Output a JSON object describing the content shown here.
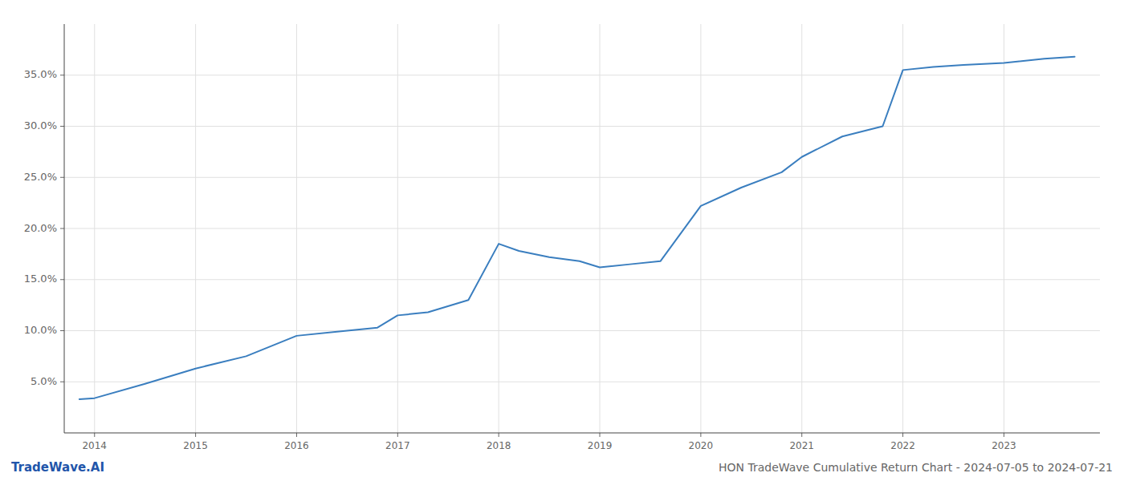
{
  "chart_data": {
    "type": "line",
    "title": "HON TradeWave Cumulative Return Chart - 2024-07-05 to 2024-07-21",
    "annotations": [
      "TradeWave.AI"
    ],
    "x": [
      2013.85,
      2014.0,
      2014.5,
      2015.0,
      2015.5,
      2016.0,
      2016.4,
      2016.8,
      2017.0,
      2017.3,
      2017.7,
      2018.0,
      2018.2,
      2018.5,
      2018.8,
      2019.0,
      2019.3,
      2019.6,
      2020.0,
      2020.4,
      2020.8,
      2021.0,
      2021.4,
      2021.8,
      2022.0,
      2022.3,
      2022.6,
      2023.0,
      2023.4,
      2023.7
    ],
    "values": [
      0.033,
      0.034,
      0.048,
      0.063,
      0.075,
      0.095,
      0.099,
      0.103,
      0.115,
      0.118,
      0.13,
      0.185,
      0.178,
      0.172,
      0.168,
      0.162,
      0.165,
      0.168,
      0.222,
      0.24,
      0.255,
      0.27,
      0.29,
      0.3,
      0.355,
      0.358,
      0.36,
      0.362,
      0.366,
      0.368
    ],
    "color": "#3a7ebf",
    "xlim": [
      2013.7,
      2023.95
    ],
    "ylim": [
      0.0,
      0.4
    ],
    "xticks": [
      2014,
      2015,
      2016,
      2017,
      2018,
      2019,
      2020,
      2021,
      2022,
      2023
    ],
    "yticks": [
      {
        "value": 0.05,
        "label": "5.0%"
      },
      {
        "value": 0.1,
        "label": "10.0%"
      },
      {
        "value": 0.15,
        "label": "15.0%"
      },
      {
        "value": 0.2,
        "label": "20.0%"
      },
      {
        "value": 0.25,
        "label": "25.0%"
      },
      {
        "value": 0.3,
        "label": "30.0%"
      },
      {
        "value": 0.35,
        "label": "35.0%"
      }
    ],
    "grid": true
  }
}
